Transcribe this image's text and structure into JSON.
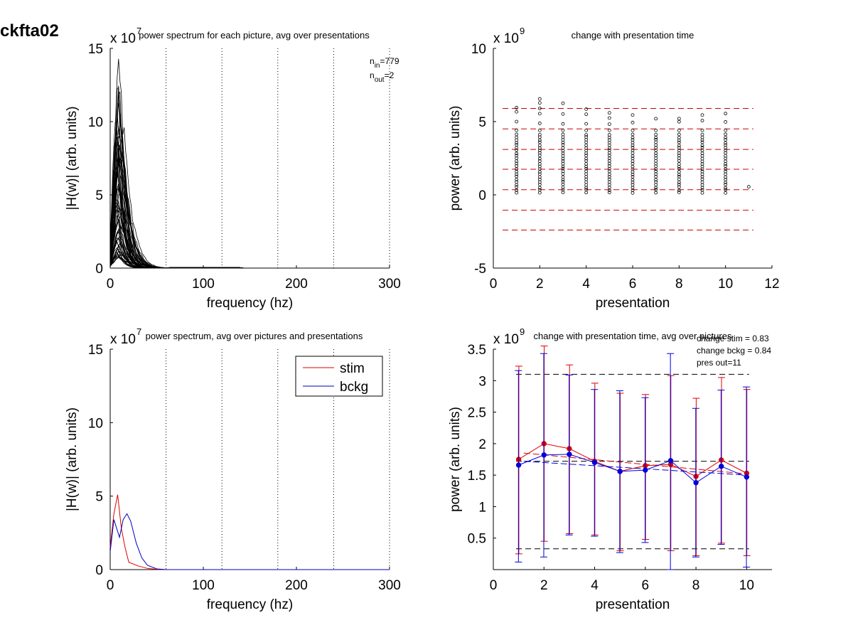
{
  "figure": {
    "label": "ckfta02"
  },
  "chart_data": [
    {
      "id": "p1",
      "type": "line",
      "title": "power spectrum for each picture, avg over presentations",
      "xlabel": "frequency (hz)",
      "ylabel": "|H(w)| (arb. units)",
      "exponent": "x 10",
      "exponent_power": "7",
      "xlim": [
        0,
        300
      ],
      "ylim": [
        0,
        15
      ],
      "xticks": [
        "0",
        "100",
        "200",
        "300"
      ],
      "yticks": [
        "0",
        "5",
        "10",
        "15"
      ],
      "vlines": [
        60,
        120,
        180,
        240,
        300
      ],
      "annotations": [
        {
          "base": "n",
          "sub": "in",
          "rest": "=779"
        },
        {
          "base": "n",
          "sub": "out",
          "rest": "=2"
        }
      ],
      "series_count": 60,
      "peak": 14,
      "peak_freq": 8
    },
    {
      "id": "p2",
      "type": "scatter",
      "title": "change with presentation time",
      "xlabel": "presentation",
      "ylabel": "power (arb. units)",
      "exponent": "x 10",
      "exponent_power": "9",
      "xlim": [
        0,
        12
      ],
      "ylim": [
        -5,
        10
      ],
      "xticks": [
        "0",
        "2",
        "4",
        "6",
        "8",
        "10",
        "12"
      ],
      "yticks": [
        "-5",
        "0",
        "5",
        "10"
      ],
      "hlines": [
        5.9,
        4.5,
        3.1,
        1.75,
        0.35,
        -1.05,
        -2.4
      ],
      "hline_color": "#cc0000",
      "columns": [
        {
          "x": 1,
          "max": 5.95
        },
        {
          "x": 2,
          "max": 6.55
        },
        {
          "x": 3,
          "max": 6.25
        },
        {
          "x": 4,
          "max": 5.85
        },
        {
          "x": 5,
          "max": 5.6
        },
        {
          "x": 6,
          "max": 5.45
        },
        {
          "x": 7,
          "max": 5.2
        },
        {
          "x": 8,
          "max": 5.2
        },
        {
          "x": 9,
          "max": 5.45
        },
        {
          "x": 10,
          "max": 5.55
        }
      ],
      "outlier": {
        "x": 11,
        "y": 0.55
      }
    },
    {
      "id": "p3",
      "type": "line",
      "title": "power spectrum, avg over pictures and presentations",
      "xlabel": "frequency (hz)",
      "ylabel": "|H(w)| (arb. units)",
      "exponent": "x 10",
      "exponent_power": "7",
      "xlim": [
        0,
        300
      ],
      "ylim": [
        0,
        15
      ],
      "xticks": [
        "0",
        "100",
        "200",
        "300"
      ],
      "yticks": [
        "0",
        "5",
        "10",
        "15"
      ],
      "vlines": [
        60,
        120,
        180,
        240,
        300
      ],
      "legend": [
        {
          "name": "stim",
          "color": "#dd0000"
        },
        {
          "name": "bckg",
          "color": "#0000bb"
        }
      ],
      "series": [
        {
          "name": "stim",
          "color": "#dd0000",
          "x": [
            0,
            4,
            8,
            12,
            16,
            20,
            30,
            40,
            50,
            60,
            300
          ],
          "y": [
            1.5,
            3.8,
            5.1,
            2.8,
            1.5,
            0.5,
            0.25,
            0.08,
            0.02,
            0,
            0
          ]
        },
        {
          "name": "bckg",
          "color": "#0000bb",
          "x": [
            0,
            4,
            10,
            14,
            18,
            22,
            28,
            34,
            40,
            50,
            60,
            300
          ],
          "y": [
            1.2,
            3.4,
            2.2,
            3.4,
            3.8,
            3.3,
            1.8,
            0.8,
            0.3,
            0.05,
            0,
            0
          ]
        }
      ]
    },
    {
      "id": "p4",
      "type": "line",
      "title": "change with presentation time, avg over pictures",
      "xlabel": "presentation",
      "ylabel": "power (arb. units)",
      "exponent": "x 10",
      "exponent_power": "9",
      "xlim": [
        0,
        11
      ],
      "ylim": [
        0,
        3.5
      ],
      "xticks": [
        "0",
        "2",
        "4",
        "6",
        "8",
        "10"
      ],
      "yticks": [
        "0.5",
        "1",
        "1.5",
        "2",
        "2.5",
        "3",
        "3.5"
      ],
      "annotations": [
        "change stim = 0.83",
        "change bckg = 0.84",
        "pres out=11"
      ],
      "hlines": [
        3.1,
        1.72,
        0.33
      ],
      "x": [
        1,
        2,
        3,
        4,
        5,
        6,
        7,
        8,
        9,
        10
      ],
      "series": [
        {
          "name": "stim",
          "color": "#dd0000",
          "values": [
            1.75,
            2.0,
            1.92,
            1.72,
            1.56,
            1.65,
            1.67,
            1.48,
            1.74,
            1.53
          ],
          "err_low": [
            0.25,
            0.45,
            0.57,
            0.55,
            0.3,
            0.48,
            0.3,
            0.22,
            0.42,
            0.22
          ],
          "err_high": [
            3.23,
            3.55,
            3.25,
            2.96,
            2.8,
            2.78,
            3.08,
            2.72,
            3.05,
            2.86
          ],
          "trend": [
            [
              1.2,
              1.85
            ],
            [
              10,
              1.52
            ]
          ]
        },
        {
          "name": "bckg",
          "color": "#0000dd",
          "values": [
            1.66,
            1.82,
            1.83,
            1.7,
            1.56,
            1.58,
            1.73,
            1.38,
            1.64,
            1.47
          ],
          "err_low": [
            0.12,
            0.2,
            0.55,
            0.53,
            0.27,
            0.43,
            0.0,
            0.2,
            0.4,
            0.04
          ],
          "err_high": [
            3.16,
            3.43,
            3.09,
            2.86,
            2.84,
            2.73,
            3.43,
            2.56,
            2.85,
            2.9
          ],
          "trend": [
            [
              1.2,
              1.72
            ],
            [
              10,
              1.5
            ]
          ]
        }
      ]
    }
  ]
}
